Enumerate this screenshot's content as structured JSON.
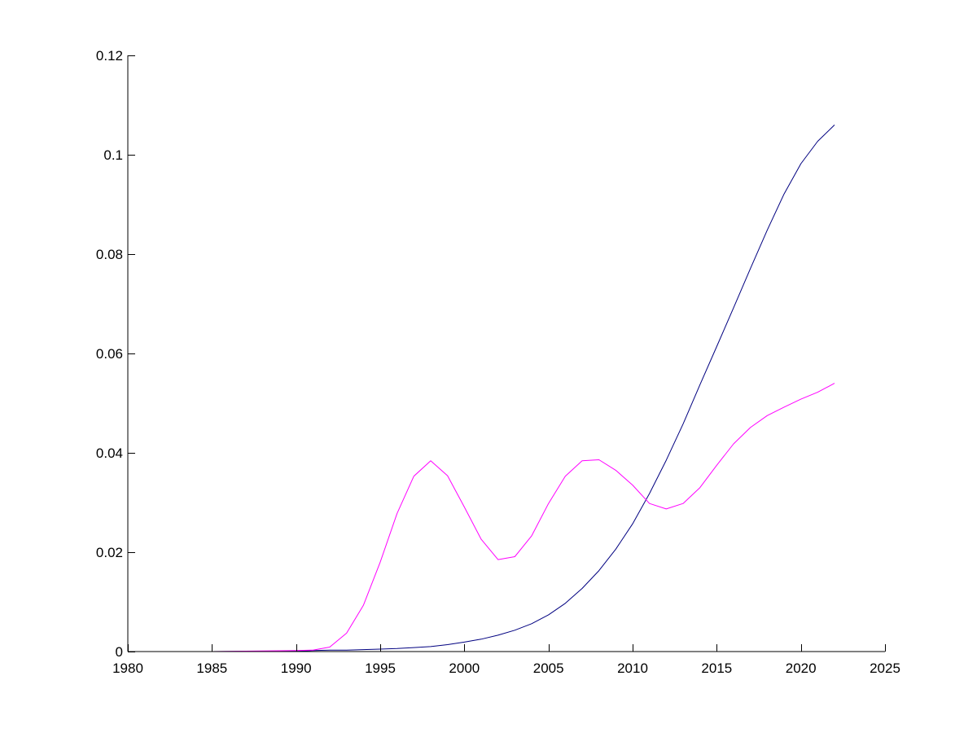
{
  "colors": {
    "background": "#ffffff",
    "axis": "#000000",
    "series_blue": "#000080",
    "series_magenta": "#ff00ff"
  },
  "chart_data": {
    "type": "line",
    "title": "",
    "xlabel": "",
    "ylabel": "",
    "xlim": [
      1980,
      2025
    ],
    "ylim": [
      0,
      0.12
    ],
    "grid": false,
    "xticks": [
      1980,
      1985,
      1990,
      1995,
      2000,
      2005,
      2010,
      2015,
      2020,
      2025
    ],
    "xtick_labels": [
      "1980",
      "1985",
      "1990",
      "1995",
      "2000",
      "2005",
      "2010",
      "2015",
      "2020",
      "2025"
    ],
    "yticks": [
      0,
      0.02,
      0.04,
      0.06,
      0.08,
      0.1,
      0.12
    ],
    "ytick_labels": [
      "0",
      "0.02",
      "0.04",
      "0.06",
      "0.08",
      "0.1",
      "0.12"
    ],
    "series": [
      {
        "color": "#000080",
        "x": [
          1980,
          1985,
          1990,
          1991,
          1992,
          1993,
          1994,
          1995,
          1996,
          1997,
          1998,
          1999,
          2000,
          2001,
          2002,
          2003,
          2004,
          2005,
          2006,
          2007,
          2008,
          2009,
          2010,
          2011,
          2012,
          2013,
          2014,
          2015,
          2016,
          2017,
          2018,
          2019,
          2020,
          2021,
          2022
        ],
        "values": [
          0,
          0,
          0.0001,
          0.0002,
          0.0003,
          0.0003,
          0.0004,
          0.0005,
          0.0006,
          0.0008,
          0.001,
          0.0014,
          0.0019,
          0.0025,
          0.0033,
          0.0043,
          0.0056,
          0.0074,
          0.0097,
          0.0127,
          0.0163,
          0.0206,
          0.0257,
          0.0318,
          0.0385,
          0.0458,
          0.0537,
          0.0614,
          0.0692,
          0.0771,
          0.0848,
          0.0921,
          0.0982,
          0.1027,
          0.106
        ]
      },
      {
        "color": "#ff00ff",
        "x": [
          1980,
          1985,
          1990,
          1991,
          1992,
          1993,
          1994,
          1995,
          1996,
          1997,
          1998,
          1999,
          2000,
          2001,
          2002,
          2003,
          2004,
          2005,
          2006,
          2007,
          2008,
          2009,
          2010,
          2011,
          2012,
          2013,
          2014,
          2015,
          2016,
          2017,
          2018,
          2019,
          2020,
          2021,
          2022
        ],
        "values": [
          0,
          0,
          0.0002,
          0.0003,
          0.0009,
          0.0037,
          0.0093,
          0.018,
          0.0278,
          0.0353,
          0.0384,
          0.0354,
          0.0291,
          0.0226,
          0.0185,
          0.0191,
          0.0233,
          0.0298,
          0.0353,
          0.0384,
          0.0386,
          0.0365,
          0.0335,
          0.0298,
          0.0287,
          0.0298,
          0.033,
          0.0375,
          0.0418,
          0.0451,
          0.0475,
          0.0492,
          0.0508,
          0.0522,
          0.054
        ]
      }
    ]
  }
}
